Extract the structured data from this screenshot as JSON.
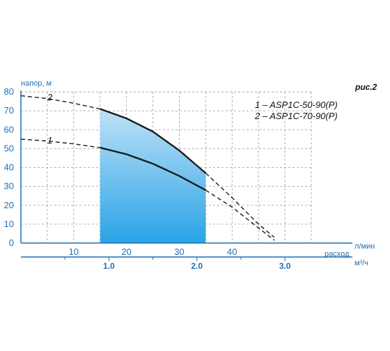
{
  "figure_label": "рис.2",
  "chart_data": {
    "type": "line",
    "ylabel": "напор, м",
    "xlabel": "расход",
    "x_unit_primary": "л/мин",
    "x_unit_secondary": "м³/ч",
    "ylim": [
      0,
      80
    ],
    "xlim": [
      0,
      55
    ],
    "y_ticks": [
      0,
      10,
      20,
      30,
      40,
      50,
      60,
      70,
      80
    ],
    "x_ticks_primary": [
      10,
      20,
      30,
      40
    ],
    "x_ticks_secondary": [
      {
        "label": "1.0",
        "lpm": 16.67
      },
      {
        "label": "2.0",
        "lpm": 33.33
      },
      {
        "label": "3.0",
        "lpm": 50
      }
    ],
    "grid": true,
    "legend_position": "top-right",
    "legend": [
      {
        "label": "1 – ASP1C-50-90(P)"
      },
      {
        "label": "2 – ASP1C-70-90(P)"
      }
    ],
    "working_range": {
      "x_min": 15,
      "x_max": 35
    },
    "series": [
      {
        "name": "1",
        "x": [
          0,
          5,
          10,
          15,
          20,
          25,
          30,
          35,
          40,
          45,
          48
        ],
        "y": [
          55,
          54,
          52.5,
          50.5,
          47,
          42,
          35.5,
          28,
          19,
          8,
          1.5
        ]
      },
      {
        "name": "2",
        "x": [
          0,
          5,
          10,
          15,
          20,
          25,
          30,
          35,
          40,
          45,
          48
        ],
        "y": [
          78,
          76.5,
          74,
          71,
          66,
          59,
          49,
          37,
          24,
          10,
          3
        ]
      }
    ],
    "colors": {
      "axis": "#1f6fb3",
      "grid": "#9a9a9a",
      "curve": "#1a1a1a",
      "fill_top": "#bfe2f7",
      "fill_bottom": "#29a3e6"
    }
  }
}
